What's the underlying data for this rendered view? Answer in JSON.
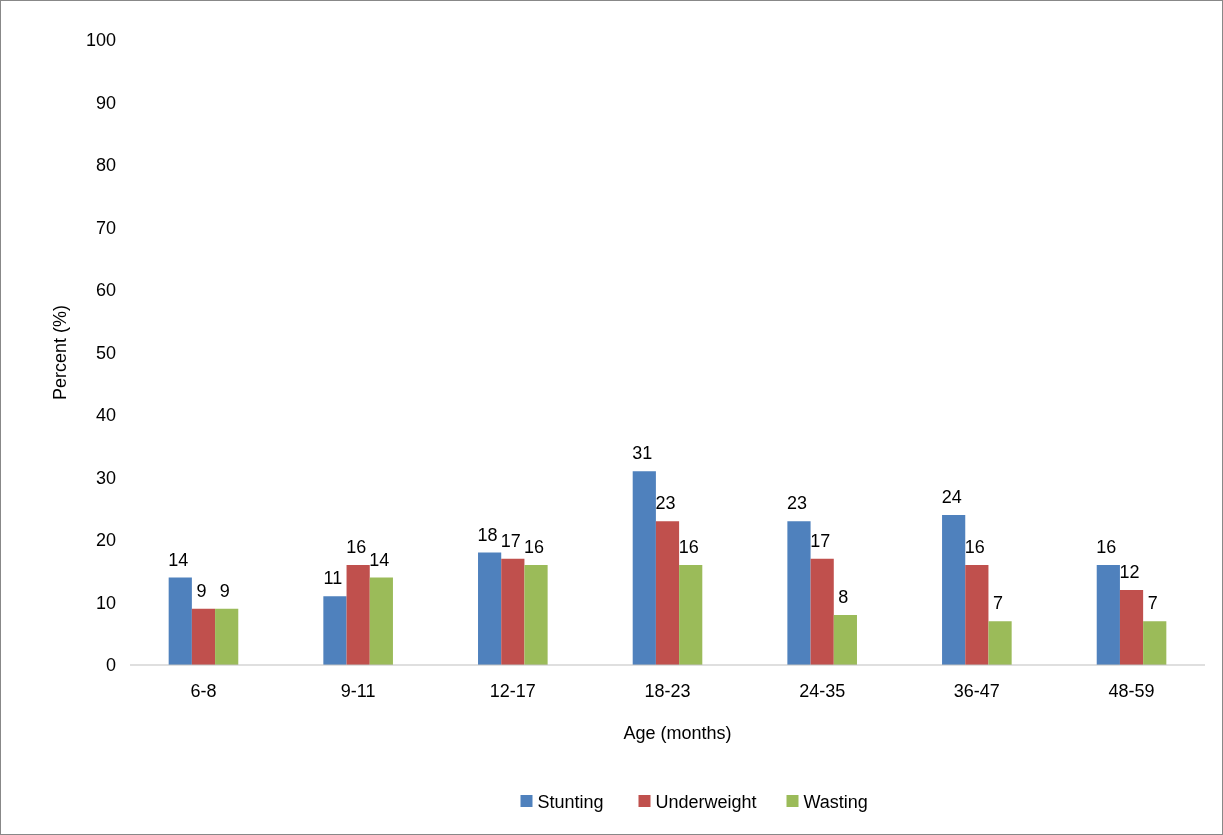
{
  "chart_data": {
    "type": "bar",
    "xlabel": "Age (months)",
    "ylabel": "Percent (%)",
    "categories": [
      "6-8",
      "9-11",
      "12-17",
      "18-23",
      "24-35",
      "36-47",
      "48-59"
    ],
    "series": [
      {
        "name": "Stunting",
        "color": "#4f81bd",
        "values": [
          14,
          11,
          18,
          31,
          23,
          24,
          16
        ]
      },
      {
        "name": "Underweight",
        "color": "#c0504d",
        "values": [
          9,
          16,
          17,
          23,
          17,
          16,
          12
        ]
      },
      {
        "name": "Wasting",
        "color": "#9bbb59",
        "values": [
          9,
          14,
          16,
          16,
          8,
          7,
          7
        ]
      }
    ],
    "ylim": [
      0,
      100
    ],
    "yticks": [
      0,
      10,
      20,
      30,
      40,
      50,
      60,
      70,
      80,
      90,
      100
    ],
    "grid": false,
    "legend": "bottom",
    "data_labels": true
  }
}
